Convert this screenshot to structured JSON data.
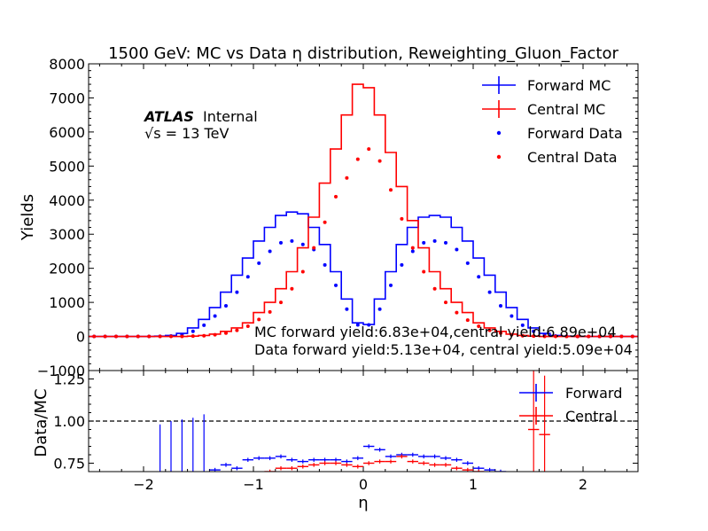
{
  "colors": {
    "forward": "#0000ff",
    "central": "#ff0000",
    "axes": "#000000"
  },
  "chart_data": [
    {
      "type": "line",
      "title": "1500 GeV: MC vs Data η distribution, Reweighting_Gluon_Factor",
      "xlabel": "",
      "ylabel": "Yields",
      "xlim": [
        -2.5,
        2.5
      ],
      "ylim": [
        -1000,
        8000
      ],
      "y_ticks": [
        "−1000",
        "0",
        "1000",
        "2000",
        "3000",
        "4000",
        "5000",
        "6000",
        "7000",
        "8000"
      ],
      "atlas_label": "ATLAS",
      "atlas_sub": "Internal",
      "energy_label": "√s = 13 TeV",
      "annotations": [
        "MC forward yield:6.83e+04,central yield:6.89e+04",
        "Data forward yield:5.13e+04, central yield:5.09e+04"
      ],
      "legend_position": "top-right",
      "bin_edges": [
        -2.5,
        -2.4,
        -2.3,
        -2.2,
        -2.1,
        -2.0,
        -1.9,
        -1.8,
        -1.7,
        -1.6,
        -1.5,
        -1.4,
        -1.3,
        -1.2,
        -1.1,
        -1.0,
        -0.9,
        -0.8,
        -0.7,
        -0.6,
        -0.5,
        -0.4,
        -0.3,
        -0.2,
        -0.1,
        0.0,
        0.1,
        0.2,
        0.3,
        0.4,
        0.5,
        0.6,
        0.7,
        0.8,
        0.9,
        1.0,
        1.1,
        1.2,
        1.3,
        1.4,
        1.5,
        1.6,
        1.7,
        1.8,
        1.9,
        2.0,
        2.1,
        2.2,
        2.3,
        2.4,
        2.5
      ],
      "series": [
        {
          "name": "Forward MC",
          "kind": "mc",
          "color": "#0000ff",
          "values": [
            0,
            0,
            0,
            0,
            0,
            0,
            10,
            30,
            90,
            250,
            500,
            850,
            1300,
            1800,
            2300,
            2800,
            3200,
            3550,
            3650,
            3600,
            3200,
            2700,
            1900,
            1100,
            400,
            350,
            1100,
            1900,
            2700,
            3200,
            3500,
            3550,
            3500,
            3200,
            2800,
            2300,
            1800,
            1300,
            850,
            500,
            250,
            90,
            30,
            10,
            0,
            0,
            0,
            0,
            0,
            0
          ]
        },
        {
          "name": "Central MC",
          "kind": "mc",
          "color": "#ff0000",
          "values": [
            0,
            0,
            0,
            0,
            0,
            0,
            0,
            0,
            0,
            10,
            30,
            70,
            150,
            250,
            400,
            700,
            1000,
            1400,
            1900,
            2600,
            3500,
            4500,
            5500,
            6500,
            7400,
            7300,
            6500,
            5400,
            4400,
            3400,
            2600,
            1900,
            1400,
            1000,
            700,
            400,
            250,
            150,
            70,
            30,
            10,
            0,
            0,
            0,
            0,
            0,
            0,
            0,
            0,
            0
          ]
        },
        {
          "name": "Forward Data",
          "kind": "data",
          "color": "#0000ff",
          "values": [
            0,
            0,
            0,
            0,
            0,
            0,
            5,
            15,
            50,
            150,
            330,
            600,
            900,
            1300,
            1750,
            2150,
            2500,
            2750,
            2800,
            2700,
            2550,
            2100,
            1500,
            800,
            340,
            340,
            800,
            1500,
            2100,
            2500,
            2750,
            2800,
            2750,
            2550,
            2150,
            1750,
            1300,
            900,
            600,
            330,
            150,
            50,
            15,
            5,
            0,
            0,
            0,
            0,
            0,
            0
          ]
        },
        {
          "name": "Central Data",
          "kind": "data",
          "color": "#ff0000",
          "values": [
            0,
            0,
            0,
            0,
            0,
            0,
            0,
            0,
            0,
            10,
            20,
            50,
            100,
            180,
            300,
            500,
            720,
            1000,
            1400,
            1900,
            2600,
            3350,
            4100,
            4650,
            5200,
            5500,
            5150,
            4300,
            3450,
            2600,
            1900,
            1400,
            1000,
            700,
            480,
            300,
            180,
            100,
            50,
            20,
            10,
            0,
            0,
            0,
            0,
            0,
            0,
            0,
            0,
            0
          ]
        }
      ]
    },
    {
      "type": "line",
      "title": "",
      "xlabel": "η",
      "ylabel": "Data/MC",
      "xlim": [
        -2.5,
        2.5
      ],
      "ylim": [
        0.7,
        1.3
      ],
      "x_ticks": [
        "−2",
        "−1",
        "0",
        "1",
        "2"
      ],
      "x_tick_values": [
        -2,
        -1,
        0,
        1,
        2
      ],
      "y_ticks": [
        "0.75",
        "1.00",
        "1.25"
      ],
      "y_tick_values": [
        0.75,
        1.0,
        1.25
      ],
      "reference_line": 1.0,
      "legend_position": "top-right",
      "series": [
        {
          "name": "Forward",
          "color": "#0000ff",
          "points": [
            [
              -1.85,
              0.63
            ],
            [
              -1.75,
              0.65
            ],
            [
              -1.65,
              0.66
            ],
            [
              -1.55,
              0.67
            ],
            [
              -1.45,
              0.69
            ],
            [
              -1.35,
              0.71
            ],
            [
              -1.25,
              0.74
            ],
            [
              -1.15,
              0.72
            ],
            [
              -1.05,
              0.77
            ],
            [
              -0.95,
              0.78
            ],
            [
              -0.85,
              0.78
            ],
            [
              -0.75,
              0.79
            ],
            [
              -0.65,
              0.77
            ],
            [
              -0.55,
              0.76
            ],
            [
              -0.45,
              0.77
            ],
            [
              -0.35,
              0.77
            ],
            [
              -0.25,
              0.77
            ],
            [
              -0.15,
              0.76
            ],
            [
              -0.05,
              0.78
            ],
            [
              0.05,
              0.85
            ],
            [
              0.15,
              0.83
            ],
            [
              0.25,
              0.79
            ],
            [
              0.35,
              0.8
            ],
            [
              0.45,
              0.8
            ],
            [
              0.55,
              0.79
            ],
            [
              0.65,
              0.79
            ],
            [
              0.75,
              0.78
            ],
            [
              0.85,
              0.77
            ],
            [
              0.95,
              0.75
            ],
            [
              1.05,
              0.72
            ],
            [
              1.15,
              0.71
            ],
            [
              1.25,
              0.7
            ]
          ]
        },
        {
          "name": "Central",
          "color": "#ff0000",
          "points": [
            [
              -0.95,
              0.68
            ],
            [
              -0.85,
              0.7
            ],
            [
              -0.75,
              0.72
            ],
            [
              -0.65,
              0.72
            ],
            [
              -0.55,
              0.73
            ],
            [
              -0.45,
              0.74
            ],
            [
              -0.35,
              0.75
            ],
            [
              -0.25,
              0.75
            ],
            [
              -0.15,
              0.74
            ],
            [
              -0.05,
              0.73
            ],
            [
              0.05,
              0.75
            ],
            [
              0.15,
              0.76
            ],
            [
              0.25,
              0.76
            ],
            [
              0.35,
              0.79
            ],
            [
              0.45,
              0.76
            ],
            [
              0.55,
              0.75
            ],
            [
              0.65,
              0.74
            ],
            [
              0.75,
              0.74
            ],
            [
              0.85,
              0.72
            ],
            [
              0.95,
              0.71
            ],
            [
              1.05,
              0.7
            ],
            [
              1.55,
              0.95
            ],
            [
              1.65,
              0.92
            ]
          ]
        }
      ]
    }
  ]
}
